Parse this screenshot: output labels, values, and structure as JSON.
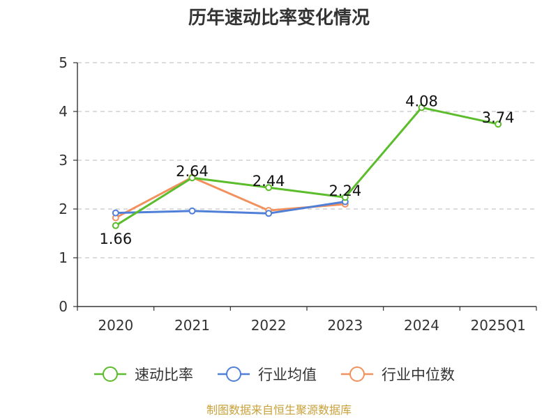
{
  "chart_data": {
    "type": "line",
    "title": "历年速动比率变化情况",
    "categories": [
      "2020",
      "2021",
      "2022",
      "2023",
      "2024",
      "2025Q1"
    ],
    "ylim": [
      0,
      5
    ],
    "yticks": [
      "0",
      "1",
      "2",
      "3",
      "4",
      "5"
    ],
    "grid": true,
    "legend_position": "bottom",
    "series": [
      {
        "name": "速动比率",
        "color": "#5cbd2c",
        "values": [
          1.66,
          2.64,
          2.44,
          2.24,
          4.08,
          3.74
        ],
        "labels": [
          "1.66",
          "2.64",
          "2.44",
          "2.24",
          "4.08",
          "3.74"
        ]
      },
      {
        "name": "行业均值",
        "color": "#4f7fd6",
        "values": [
          1.92,
          1.96,
          1.91,
          2.15,
          null,
          null
        ]
      },
      {
        "name": "行业中位数",
        "color": "#f3915e",
        "values": [
          1.82,
          2.65,
          1.97,
          2.1,
          null,
          null
        ]
      }
    ]
  },
  "footer": {
    "source": "制图数据来自恒生聚源数据库"
  }
}
